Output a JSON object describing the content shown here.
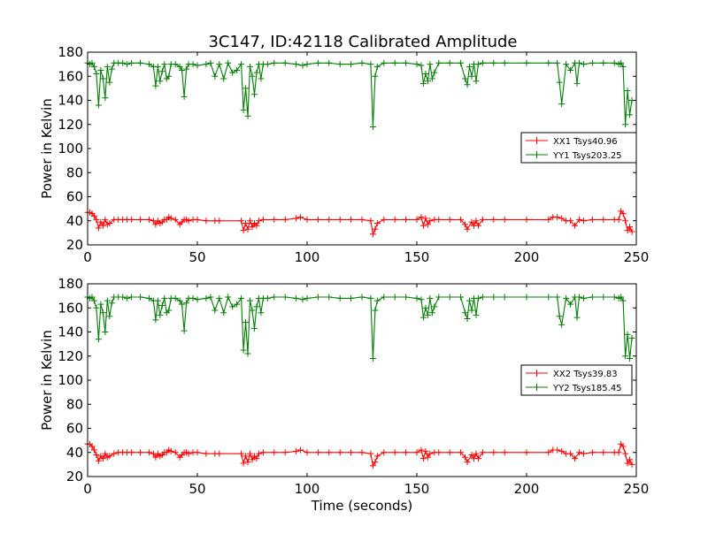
{
  "title": "3C147, ID:42118 Calibrated Amplitude",
  "colors": {
    "red": "#ff0000",
    "green": "#007f00",
    "frame": "#000000"
  },
  "chart_data": [
    {
      "type": "line",
      "title": "3C147, ID:42118 Calibrated Amplitude",
      "xlabel": "",
      "ylabel": "Power in Kelvin",
      "xlim": [
        0,
        250
      ],
      "ylim": [
        20,
        180
      ],
      "xticks": [
        "0",
        "50",
        "100",
        "150",
        "200",
        "250"
      ],
      "yticks": [
        "20",
        "40",
        "60",
        "80",
        "100",
        "120",
        "140",
        "160",
        "180"
      ],
      "legend_position": "right",
      "grid": false,
      "marker": "+",
      "series": [
        {
          "name": "XX1 Tsys40.96",
          "color": "#ff0000",
          "x": [
            0,
            1,
            2,
            3,
            4,
            5,
            6,
            7,
            8,
            9,
            10,
            12,
            14,
            16,
            18,
            20,
            24,
            28,
            30,
            31,
            32,
            33,
            34,
            35,
            36,
            37,
            38,
            40,
            42,
            43,
            44,
            45,
            46,
            48,
            50,
            54,
            58,
            60,
            70,
            71,
            72,
            73,
            74,
            75,
            76,
            77,
            78,
            80,
            85,
            90,
            95,
            97,
            100,
            105,
            110,
            115,
            120,
            125,
            129,
            130,
            131,
            132,
            135,
            140,
            145,
            150,
            152,
            153,
            154,
            155,
            156,
            158,
            160,
            165,
            170,
            172,
            173,
            175,
            176,
            177,
            178,
            180,
            185,
            190,
            200,
            210,
            212,
            214,
            216,
            218,
            220,
            222,
            224,
            226,
            230,
            235,
            240,
            242,
            243,
            244,
            245,
            246,
            247,
            248
          ],
          "y": [
            47,
            47,
            46,
            44,
            41,
            34,
            39,
            36,
            41,
            37,
            38,
            41,
            41,
            41,
            41,
            41,
            41,
            41,
            40,
            37,
            40,
            38,
            39,
            41,
            41,
            43,
            42,
            41,
            37,
            39,
            41,
            41,
            40,
            41,
            41,
            40,
            40,
            40,
            40,
            32,
            38,
            33,
            40,
            35,
            38,
            36,
            40,
            41,
            41,
            41,
            42,
            43,
            41,
            41,
            41,
            41,
            41,
            41,
            40,
            29,
            33,
            38,
            41,
            41,
            41,
            41,
            43,
            36,
            42,
            37,
            40,
            41,
            41,
            41,
            41,
            37,
            33,
            39,
            36,
            40,
            36,
            41,
            41,
            41,
            41,
            41,
            43,
            43,
            42,
            40,
            40,
            36,
            41,
            40,
            41,
            41,
            41,
            41,
            48,
            46,
            40,
            32,
            35,
            31
          ]
        },
        {
          "name": "YY1 Tsys203.25",
          "color": "#007f00",
          "x": [
            0,
            1,
            2,
            3,
            4,
            5,
            6,
            7,
            8,
            9,
            10,
            11,
            12,
            14,
            16,
            18,
            20,
            24,
            28,
            30,
            31,
            32,
            33,
            34,
            35,
            36,
            37,
            38,
            40,
            42,
            43,
            44,
            45,
            46,
            48,
            50,
            54,
            56,
            58,
            60,
            62,
            64,
            66,
            68,
            70,
            71,
            72,
            73,
            74,
            75,
            76,
            77,
            78,
            79,
            80,
            82,
            85,
            90,
            95,
            98,
            100,
            105,
            110,
            115,
            120,
            125,
            129,
            130,
            131,
            132,
            135,
            140,
            145,
            150,
            152,
            153,
            154,
            155,
            156,
            157,
            158,
            160,
            165,
            170,
            172,
            173,
            174,
            175,
            176,
            177,
            178,
            180,
            185,
            190,
            200,
            210,
            214,
            215,
            216,
            218,
            220,
            222,
            223,
            224,
            226,
            230,
            235,
            240,
            242,
            243,
            244,
            245,
            246,
            247,
            248
          ],
          "y": [
            171,
            170,
            171,
            168,
            162,
            136,
            165,
            158,
            142,
            168,
            155,
            166,
            171,
            171,
            171,
            170,
            171,
            171,
            170,
            168,
            152,
            168,
            156,
            164,
            170,
            158,
            160,
            170,
            170,
            168,
            165,
            143,
            166,
            170,
            170,
            169,
            170,
            171,
            160,
            170,
            158,
            171,
            163,
            165,
            170,
            132,
            150,
            127,
            168,
            160,
            145,
            163,
            170,
            158,
            170,
            170,
            171,
            171,
            170,
            169,
            170,
            171,
            171,
            170,
            170,
            171,
            170,
            118,
            160,
            168,
            171,
            171,
            171,
            170,
            169,
            154,
            162,
            156,
            170,
            158,
            163,
            171,
            171,
            171,
            158,
            153,
            168,
            160,
            170,
            156,
            170,
            171,
            171,
            171,
            171,
            171,
            171,
            155,
            137,
            170,
            165,
            171,
            154,
            171,
            170,
            171,
            171,
            171,
            170,
            171,
            168,
            120,
            148,
            128,
            140
          ]
        }
      ]
    },
    {
      "type": "line",
      "title": "",
      "xlabel": "Time (seconds)",
      "ylabel": "Power in Kelvin",
      "xlim": [
        0,
        250
      ],
      "ylim": [
        20,
        180
      ],
      "xticks": [
        "0",
        "50",
        "100",
        "150",
        "200",
        "250"
      ],
      "yticks": [
        "20",
        "40",
        "60",
        "80",
        "100",
        "120",
        "140",
        "160",
        "180"
      ],
      "legend_position": "right",
      "grid": false,
      "marker": "+",
      "series": [
        {
          "name": "XX2 Tsys39.83",
          "color": "#ff0000",
          "x": [
            0,
            1,
            2,
            3,
            4,
            5,
            6,
            7,
            8,
            9,
            10,
            12,
            14,
            16,
            18,
            20,
            24,
            28,
            30,
            31,
            32,
            33,
            34,
            35,
            36,
            37,
            38,
            40,
            42,
            43,
            44,
            45,
            46,
            48,
            50,
            54,
            58,
            60,
            70,
            71,
            72,
            73,
            74,
            75,
            76,
            77,
            78,
            80,
            85,
            90,
            95,
            97,
            100,
            105,
            110,
            115,
            120,
            125,
            129,
            130,
            131,
            132,
            135,
            140,
            145,
            150,
            152,
            153,
            154,
            155,
            156,
            158,
            160,
            165,
            170,
            172,
            173,
            175,
            176,
            177,
            178,
            180,
            185,
            190,
            200,
            210,
            212,
            214,
            216,
            218,
            220,
            222,
            224,
            226,
            230,
            235,
            240,
            242,
            243,
            244,
            245,
            246,
            247,
            248
          ],
          "y": [
            47,
            47,
            45,
            42,
            38,
            33,
            37,
            35,
            39,
            36,
            37,
            39,
            40,
            40,
            40,
            40,
            40,
            40,
            39,
            36,
            39,
            37,
            38,
            40,
            40,
            42,
            41,
            40,
            36,
            38,
            40,
            40,
            39,
            40,
            40,
            39,
            39,
            39,
            39,
            31,
            37,
            32,
            39,
            34,
            37,
            35,
            39,
            40,
            40,
            40,
            41,
            42,
            40,
            40,
            40,
            40,
            40,
            40,
            39,
            29,
            32,
            37,
            40,
            40,
            40,
            40,
            42,
            35,
            41,
            36,
            39,
            40,
            40,
            40,
            40,
            36,
            32,
            38,
            35,
            39,
            35,
            40,
            40,
            40,
            40,
            40,
            42,
            42,
            41,
            39,
            39,
            35,
            40,
            39,
            40,
            40,
            40,
            40,
            47,
            45,
            39,
            31,
            34,
            30
          ]
        },
        {
          "name": "YY2 Tsys185.45",
          "color": "#007f00",
          "x": [
            0,
            1,
            2,
            3,
            4,
            5,
            6,
            7,
            8,
            9,
            10,
            11,
            12,
            14,
            16,
            18,
            20,
            24,
            28,
            30,
            31,
            32,
            33,
            34,
            35,
            36,
            37,
            38,
            40,
            42,
            43,
            44,
            45,
            46,
            48,
            50,
            54,
            56,
            58,
            60,
            62,
            64,
            66,
            68,
            70,
            71,
            72,
            73,
            74,
            75,
            76,
            77,
            78,
            79,
            80,
            82,
            85,
            90,
            95,
            98,
            100,
            105,
            110,
            115,
            120,
            125,
            129,
            130,
            131,
            132,
            135,
            140,
            145,
            150,
            152,
            153,
            154,
            155,
            156,
            157,
            158,
            160,
            165,
            170,
            172,
            173,
            174,
            175,
            176,
            177,
            178,
            180,
            185,
            190,
            200,
            210,
            214,
            215,
            216,
            218,
            220,
            222,
            223,
            224,
            226,
            230,
            235,
            240,
            242,
            243,
            244,
            245,
            246,
            247,
            248
          ],
          "y": [
            169,
            168,
            169,
            166,
            160,
            134,
            163,
            156,
            140,
            166,
            153,
            164,
            169,
            169,
            169,
            168,
            169,
            169,
            168,
            166,
            150,
            166,
            154,
            162,
            168,
            156,
            158,
            168,
            168,
            166,
            163,
            141,
            164,
            168,
            168,
            167,
            168,
            169,
            158,
            168,
            156,
            169,
            161,
            163,
            168,
            125,
            148,
            122,
            166,
            158,
            143,
            161,
            168,
            156,
            168,
            168,
            169,
            169,
            168,
            167,
            168,
            169,
            169,
            168,
            168,
            169,
            168,
            118,
            158,
            166,
            169,
            169,
            169,
            168,
            167,
            152,
            160,
            154,
            168,
            156,
            161,
            169,
            169,
            169,
            156,
            151,
            166,
            158,
            168,
            154,
            168,
            169,
            169,
            169,
            169,
            169,
            169,
            153,
            146,
            168,
            163,
            169,
            152,
            169,
            168,
            169,
            169,
            169,
            168,
            169,
            166,
            120,
            138,
            118,
            135
          ]
        }
      ]
    }
  ]
}
